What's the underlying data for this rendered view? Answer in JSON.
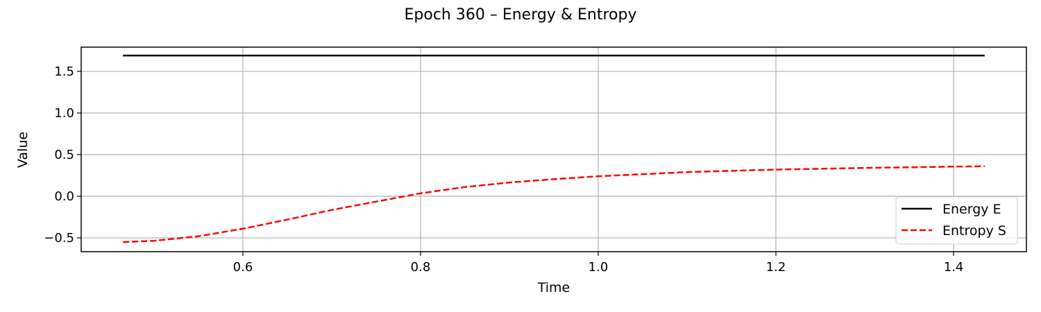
{
  "chart_data": {
    "type": "line",
    "title": "Epoch 360 – Energy & Entropy",
    "xlabel": "Time",
    "ylabel": "Value",
    "xlim": [
      0.418,
      1.482
    ],
    "ylim": [
      -0.666,
      1.791
    ],
    "xticks": [
      0.6,
      0.8,
      1.0,
      1.2,
      1.4
    ],
    "xtick_labels": [
      "0.6",
      "0.8",
      "1.0",
      "1.2",
      "1.4"
    ],
    "yticks": [
      -0.5,
      0.0,
      0.5,
      1.0,
      1.5
    ],
    "ytick_labels": [
      "−0.5",
      "0.0",
      "0.5",
      "1.0",
      "1.5"
    ],
    "grid": true,
    "legend_position": "lower-right",
    "x": [
      0.465,
      0.5,
      0.55,
      0.6,
      0.65,
      0.7,
      0.75,
      0.8,
      0.85,
      0.9,
      0.95,
      1.0,
      1.05,
      1.1,
      1.15,
      1.2,
      1.25,
      1.3,
      1.35,
      1.4,
      1.435
    ],
    "series": [
      {
        "name": "Energy E",
        "color": "#000000",
        "style": "solid",
        "values": [
          1.69,
          1.69,
          1.69,
          1.69,
          1.69,
          1.69,
          1.69,
          1.69,
          1.69,
          1.69,
          1.69,
          1.69,
          1.69,
          1.69,
          1.69,
          1.69,
          1.69,
          1.69,
          1.69,
          1.69,
          1.69
        ]
      },
      {
        "name": "Entropy S",
        "color": "#ff0000",
        "style": "dashed",
        "values": [
          -0.55,
          -0.535,
          -0.48,
          -0.39,
          -0.28,
          -0.165,
          -0.065,
          0.035,
          0.11,
          0.165,
          0.205,
          0.24,
          0.265,
          0.29,
          0.305,
          0.32,
          0.33,
          0.34,
          0.348,
          0.356,
          0.36
        ]
      }
    ]
  }
}
